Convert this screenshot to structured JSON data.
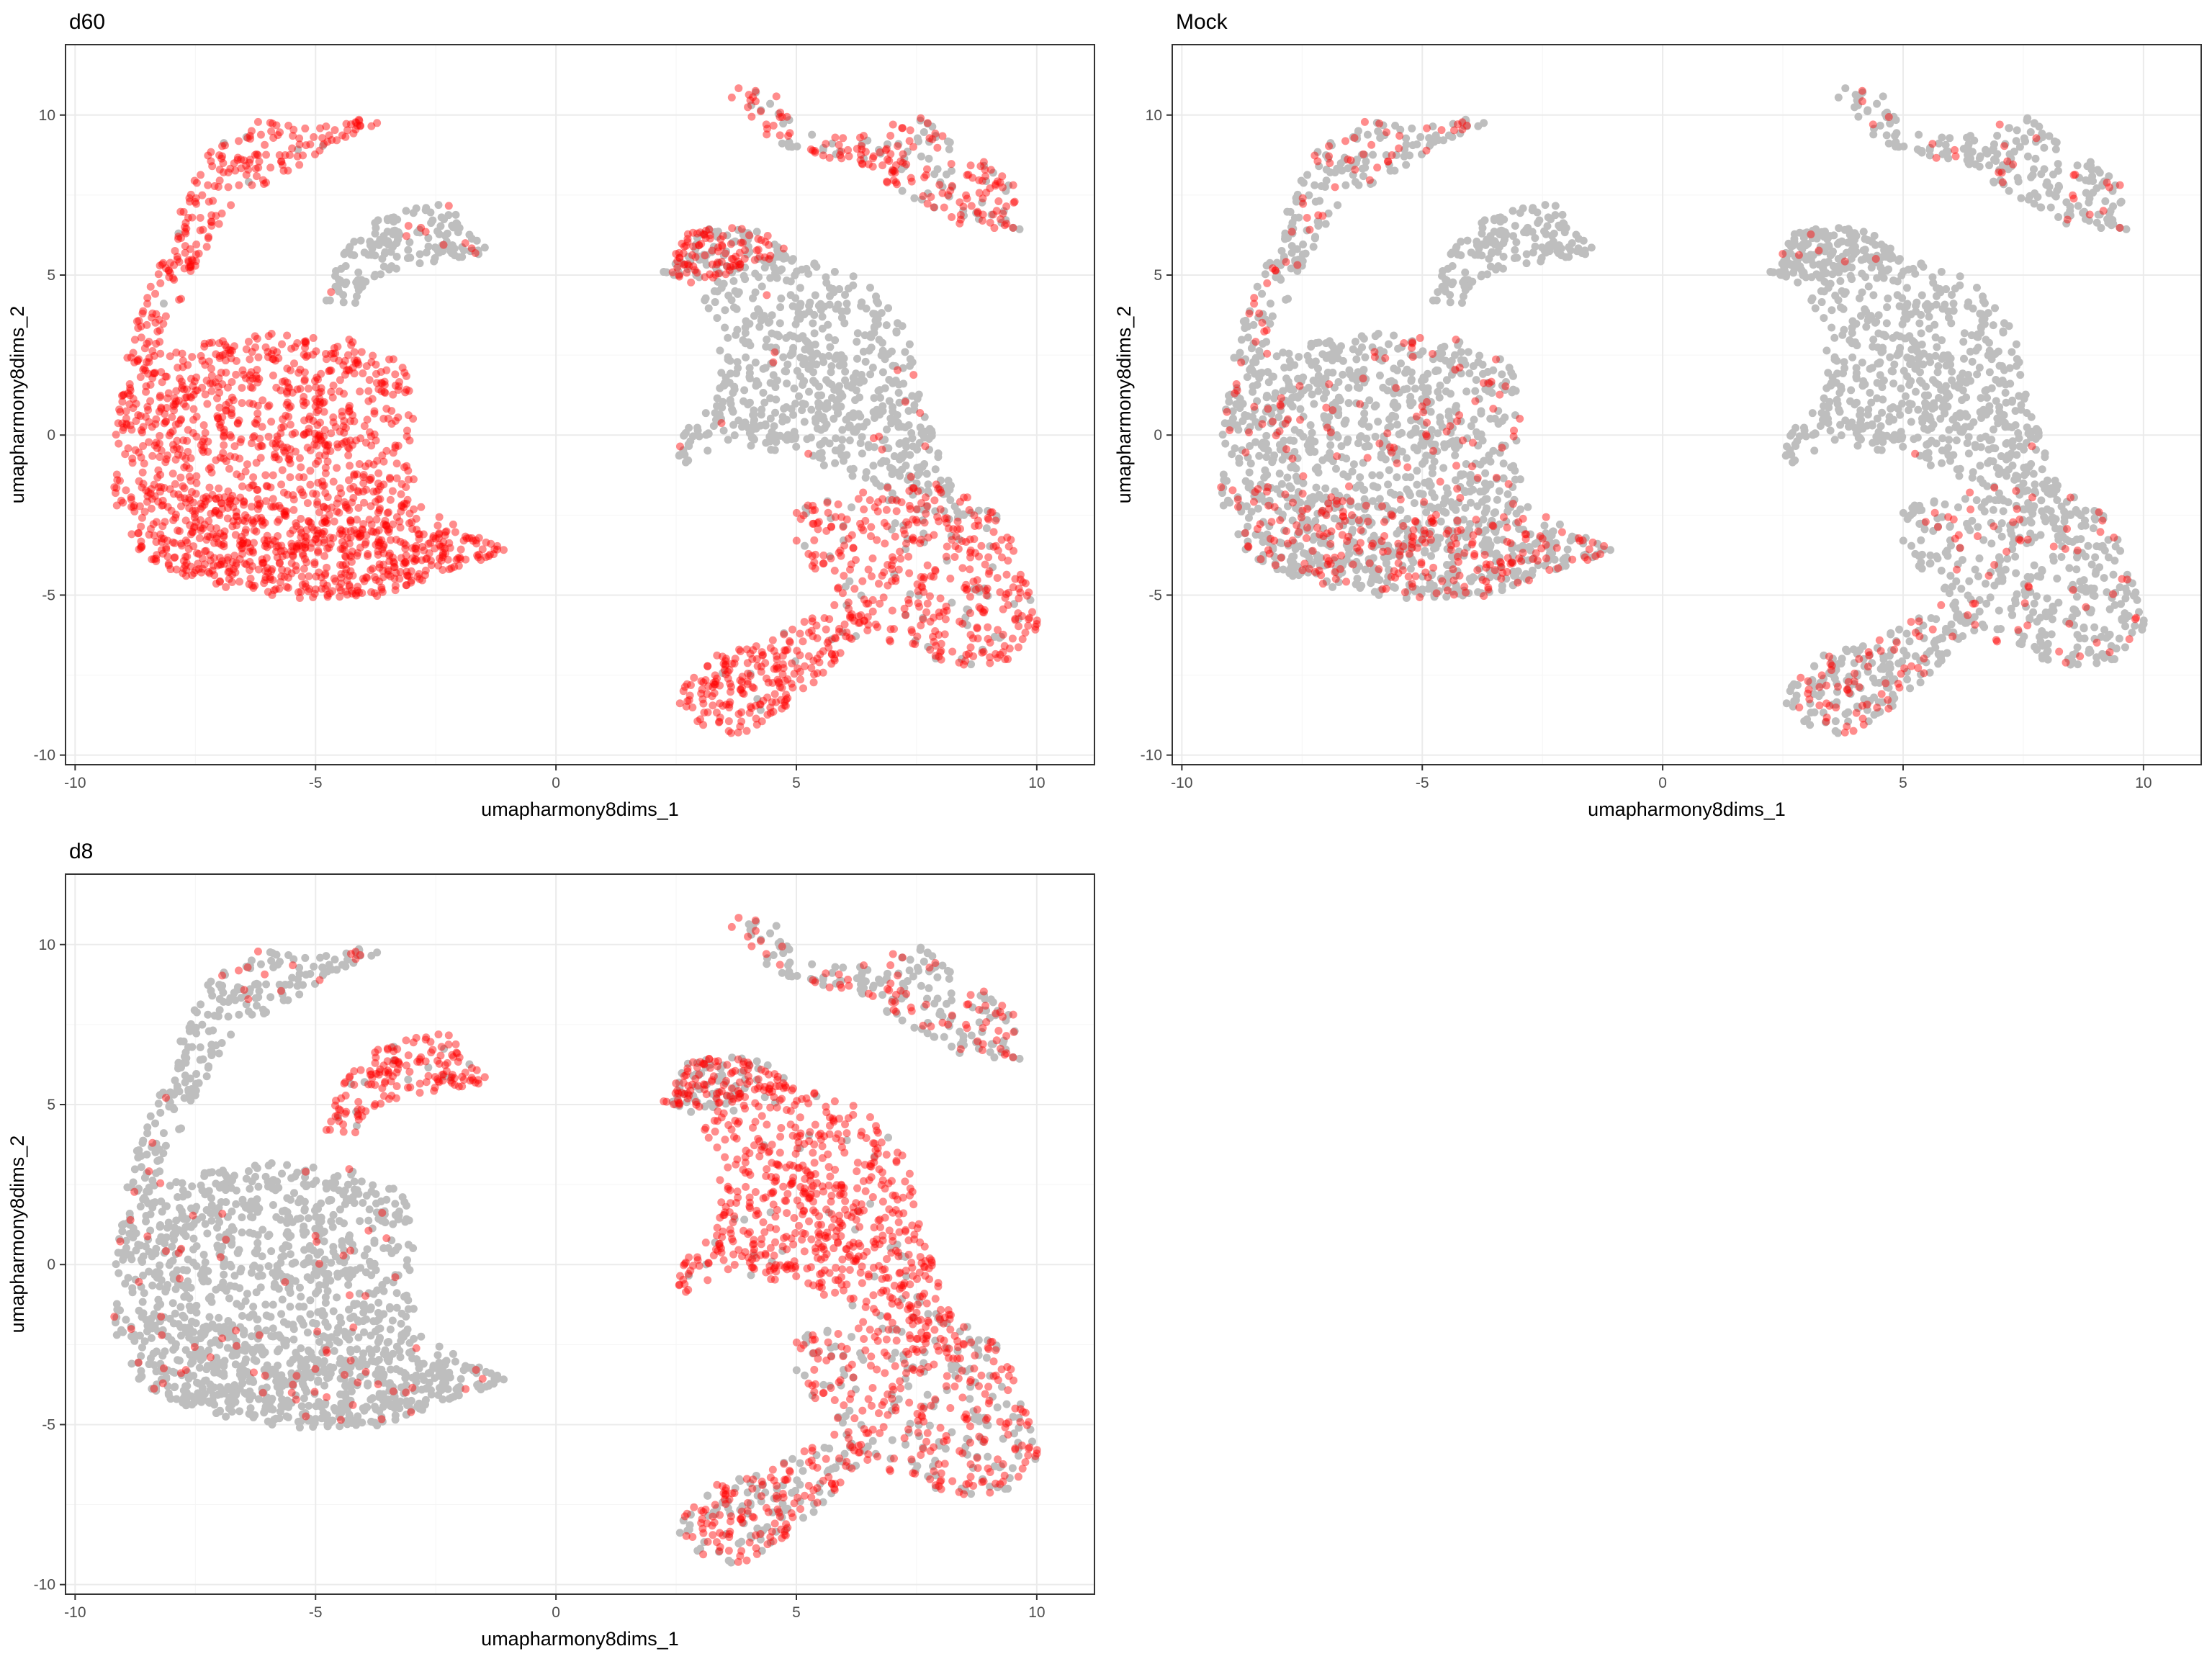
{
  "chart_data": [
    {
      "type": "scatter",
      "title": "d60",
      "xlabel": "umapharmony8dims_1",
      "ylabel": "umapharmony8dims_2",
      "xlim": [
        -10.2,
        11.2
      ],
      "ylim": [
        -10.3,
        12.2
      ],
      "xticks": [
        -10,
        -5,
        0,
        5,
        10
      ],
      "yticks": [
        -10,
        -5,
        0,
        5,
        10
      ],
      "grid": true,
      "highlight_color": "#ff0000",
      "background_color": "#bebebe",
      "highlight": {
        "left_blob": 1.0,
        "left_bottom": 1.0,
        "left_strand": 0.95,
        "left_small": 0.05,
        "right_center": 0.02,
        "right_upper_arm": 0.95,
        "right_top": 0.7,
        "right_lower": 0.85,
        "right_bottom": 0.95,
        "right_small": 0.05
      }
    },
    {
      "type": "scatter",
      "title": "Mock",
      "xlabel": "umapharmony8dims_1",
      "ylabel": "umapharmony8dims_2",
      "xlim": [
        -10.2,
        11.2
      ],
      "ylim": [
        -10.3,
        12.2
      ],
      "xticks": [
        -10,
        -5,
        0,
        5,
        10
      ],
      "yticks": [
        -10,
        -5,
        0,
        5,
        10
      ],
      "grid": true,
      "highlight_color": "#ff0000",
      "background_color": "#bebebe",
      "highlight": {
        "left_blob": 0.12,
        "left_bottom": 0.55,
        "left_strand": 0.25,
        "left_small": 0.0,
        "right_center": 0.005,
        "right_upper_arm": 0.08,
        "right_top": 0.15,
        "right_lower": 0.15,
        "right_bottom": 0.25,
        "right_small": 0.0
      }
    },
    {
      "type": "scatter",
      "title": "d8",
      "xlabel": "umapharmony8dims_1",
      "ylabel": "umapharmony8dims_2",
      "xlim": [
        -10.2,
        11.2
      ],
      "ylim": [
        -10.3,
        12.2
      ],
      "xticks": [
        -10,
        -5,
        0,
        5,
        10
      ],
      "yticks": [
        -10,
        -5,
        0,
        5,
        10
      ],
      "grid": true,
      "highlight_color": "#ff0000",
      "background_color": "#bebebe",
      "highlight": {
        "left_blob": 0.05,
        "left_bottom": 0.06,
        "left_strand": 0.08,
        "left_small": 0.9,
        "right_center": 0.95,
        "right_upper_arm": 0.4,
        "right_top": 0.35,
        "right_lower": 0.6,
        "right_bottom": 0.55,
        "right_small": 0.9
      }
    }
  ]
}
